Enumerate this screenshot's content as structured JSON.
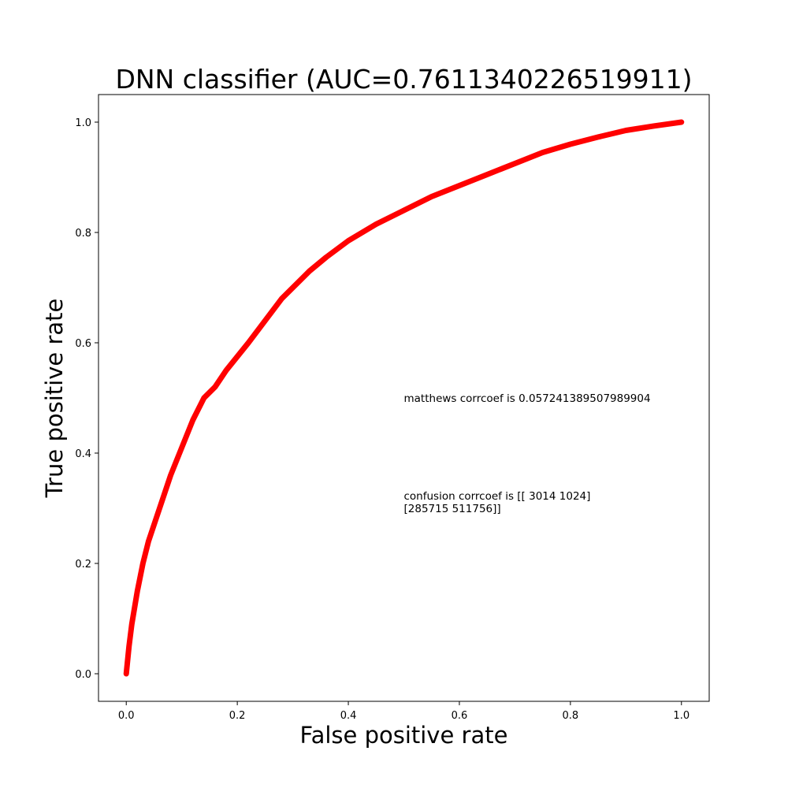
{
  "chart_data": {
    "type": "line",
    "title": "DNN classifier (AUC=0.7611340226519911)",
    "xlabel": "False positive rate",
    "ylabel": "True positive rate",
    "xlim": [
      -0.05,
      1.05
    ],
    "ylim": [
      -0.05,
      1.05
    ],
    "xticks": [
      "0.0",
      "0.2",
      "0.4",
      "0.6",
      "0.8",
      "1.0"
    ],
    "yticks": [
      "0.0",
      "0.2",
      "0.4",
      "0.6",
      "0.8",
      "1.0"
    ],
    "grid": false,
    "series": [
      {
        "color": "#ff0000",
        "x": [
          0.0,
          0.005,
          0.01,
          0.015,
          0.02,
          0.03,
          0.04,
          0.05,
          0.06,
          0.07,
          0.08,
          0.1,
          0.12,
          0.14,
          0.16,
          0.18,
          0.2,
          0.22,
          0.25,
          0.28,
          0.3,
          0.33,
          0.36,
          0.4,
          0.45,
          0.5,
          0.55,
          0.6,
          0.65,
          0.7,
          0.75,
          0.8,
          0.85,
          0.9,
          0.95,
          1.0
        ],
        "y": [
          0.0,
          0.05,
          0.09,
          0.12,
          0.15,
          0.2,
          0.24,
          0.27,
          0.3,
          0.33,
          0.36,
          0.41,
          0.46,
          0.5,
          0.52,
          0.55,
          0.575,
          0.6,
          0.64,
          0.68,
          0.7,
          0.73,
          0.755,
          0.785,
          0.815,
          0.84,
          0.865,
          0.885,
          0.905,
          0.925,
          0.945,
          0.96,
          0.973,
          0.985,
          0.993,
          1.0
        ]
      }
    ],
    "annotations": [
      {
        "x": 0.5,
        "y": 0.5,
        "lines": [
          "matthews corrcoef is 0.057241389507989904"
        ]
      },
      {
        "x": 0.5,
        "y": 0.3,
        "lines": [
          "confusion corrcoef is [[  3014   1024]",
          " [285715 511756]]"
        ]
      }
    ]
  }
}
